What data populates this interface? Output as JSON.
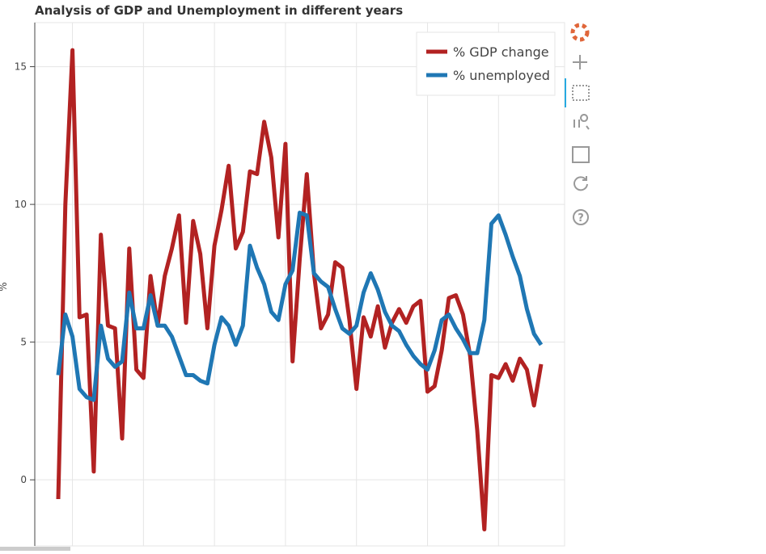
{
  "chart_data": {
    "type": "line",
    "title": "Analysis of GDP and Unemployment in different years",
    "y_label": "%",
    "categories": [
      null,
      null,
      null,
      null,
      null,
      null,
      null,
      null,
      null,
      null,
      null,
      null,
      null,
      null,
      null,
      null,
      null,
      null,
      null,
      null,
      null,
      null,
      null,
      null,
      null,
      null,
      null,
      null,
      null,
      null,
      null,
      null,
      null,
      null,
      null,
      null,
      null,
      null,
      null,
      null,
      null,
      null,
      null,
      null,
      null,
      null,
      null,
      null,
      null,
      null,
      null,
      null,
      null,
      null,
      null,
      null,
      null,
      null,
      null,
      null,
      null,
      null,
      null,
      null,
      null,
      null,
      null,
      null,
      null
    ],
    "series": [
      {
        "name": "% GDP change",
        "color": "#b22222",
        "values": [
          -0.7,
          10,
          15.6,
          5.9,
          6.0,
          0.3,
          8.9,
          5.6,
          5.5,
          1.5,
          8.4,
          4.0,
          3.7,
          7.4,
          5.6,
          7.4,
          8.4,
          9.6,
          5.7,
          9.4,
          8.2,
          5.5,
          8.5,
          9.8,
          11.4,
          8.4,
          9.0,
          11.2,
          11.1,
          13.0,
          11.7,
          8.8,
          12.2,
          4.3,
          8.0,
          11.1,
          7.5,
          5.5,
          6.0,
          7.9,
          7.7,
          5.8,
          3.3,
          5.9,
          5.2,
          6.3,
          4.8,
          5.7,
          6.2,
          5.7,
          6.3,
          6.5,
          3.2,
          3.4,
          4.7,
          6.6,
          6.7,
          6.0,
          4.5,
          1.8,
          -1.8,
          3.8,
          3.7,
          4.2,
          3.6,
          4.4,
          4.0,
          2.7,
          4.2
        ]
      },
      {
        "name": "% unemployed",
        "color": "#1f77b4",
        "values": [
          3.8,
          6.0,
          5.2,
          3.3,
          3.0,
          2.9,
          5.6,
          4.4,
          4.1,
          4.3,
          6.8,
          5.5,
          5.5,
          6.7,
          5.6,
          5.6,
          5.2,
          4.5,
          3.8,
          3.8,
          3.6,
          3.5,
          4.9,
          5.9,
          5.6,
          4.9,
          5.6,
          8.5,
          7.7,
          7.1,
          6.1,
          5.8,
          7.1,
          7.6,
          9.7,
          9.6,
          7.5,
          7.2,
          7.0,
          6.2,
          5.5,
          5.3,
          5.6,
          6.8,
          7.5,
          6.9,
          6.1,
          5.6,
          5.4,
          4.9,
          4.5,
          4.2,
          4.0,
          4.7,
          5.8,
          6.0,
          5.5,
          5.1,
          4.6,
          4.6,
          5.8,
          9.3,
          9.6,
          8.9,
          8.1,
          7.4,
          6.2,
          5.3,
          4.9
        ]
      }
    ],
    "ylim": [
      -2.4,
      16.6
    ],
    "yticks": [
      0,
      5,
      10,
      15
    ],
    "grid": true,
    "legend": "top-right"
  }
}
